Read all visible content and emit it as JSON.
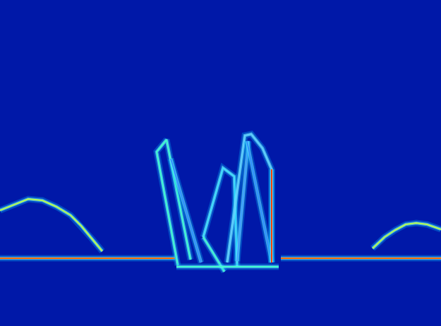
{
  "chart_data": {
    "type": "line",
    "xlim": [
      0,
      625
    ],
    "ylim": [
      462,
      0
    ],
    "tick_labels": false,
    "grid": false,
    "series": [
      {
        "color": "#ff6a00",
        "x": [
          0,
          248
        ],
        "y": [
          366,
          366
        ]
      },
      {
        "color": "#ff6a00",
        "x": [
          398,
          625
        ],
        "y": [
          366,
          366
        ]
      },
      {
        "color": "#b8ff50",
        "x": [
          0,
          20,
          40,
          60,
          80,
          100,
          115,
          130,
          145
        ],
        "y": [
          298,
          290,
          282,
          284,
          293,
          305,
          320,
          338,
          356
        ]
      },
      {
        "color": "#b8ff50",
        "x": [
          528,
          545,
          560,
          575,
          590,
          605,
          625
        ],
        "y": [
          352,
          336,
          326,
          318,
          316,
          318,
          325
        ]
      },
      {
        "color": "#40ffd0",
        "x": [
          252,
          222,
          236,
          270
        ],
        "y": [
          376,
          215,
          198,
          368
        ]
      },
      {
        "color": "#3090ff",
        "x": [
          242,
          285
        ],
        "y": [
          225,
          372
        ]
      },
      {
        "color": "#40e0ff",
        "x": [
          288,
          316,
          332,
          336
        ],
        "y": [
          336,
          238,
          250,
          378
        ]
      },
      {
        "color": "#40ffd0",
        "x": [
          288,
          300,
          318
        ],
        "y": [
          336,
          355,
          385
        ]
      },
      {
        "color": "#60d0ff",
        "x": [
          322,
          347,
          356,
          372,
          385,
          385
        ],
        "y": [
          372,
          192,
          190,
          210,
          240,
          372
        ]
      },
      {
        "color": "#40a0ff",
        "x": [
          336,
          352
        ],
        "y": [
          370,
          200
        ]
      },
      {
        "color": "#3090ff",
        "x": [
          350,
          385
        ],
        "y": [
          200,
          372
        ]
      },
      {
        "color": "#ff4000",
        "x": [
          385,
          385
        ],
        "y": [
          240,
          372
        ]
      },
      {
        "color": "#40ffd0",
        "x": [
          250,
          395
        ],
        "y": [
          378,
          378
        ]
      }
    ]
  }
}
